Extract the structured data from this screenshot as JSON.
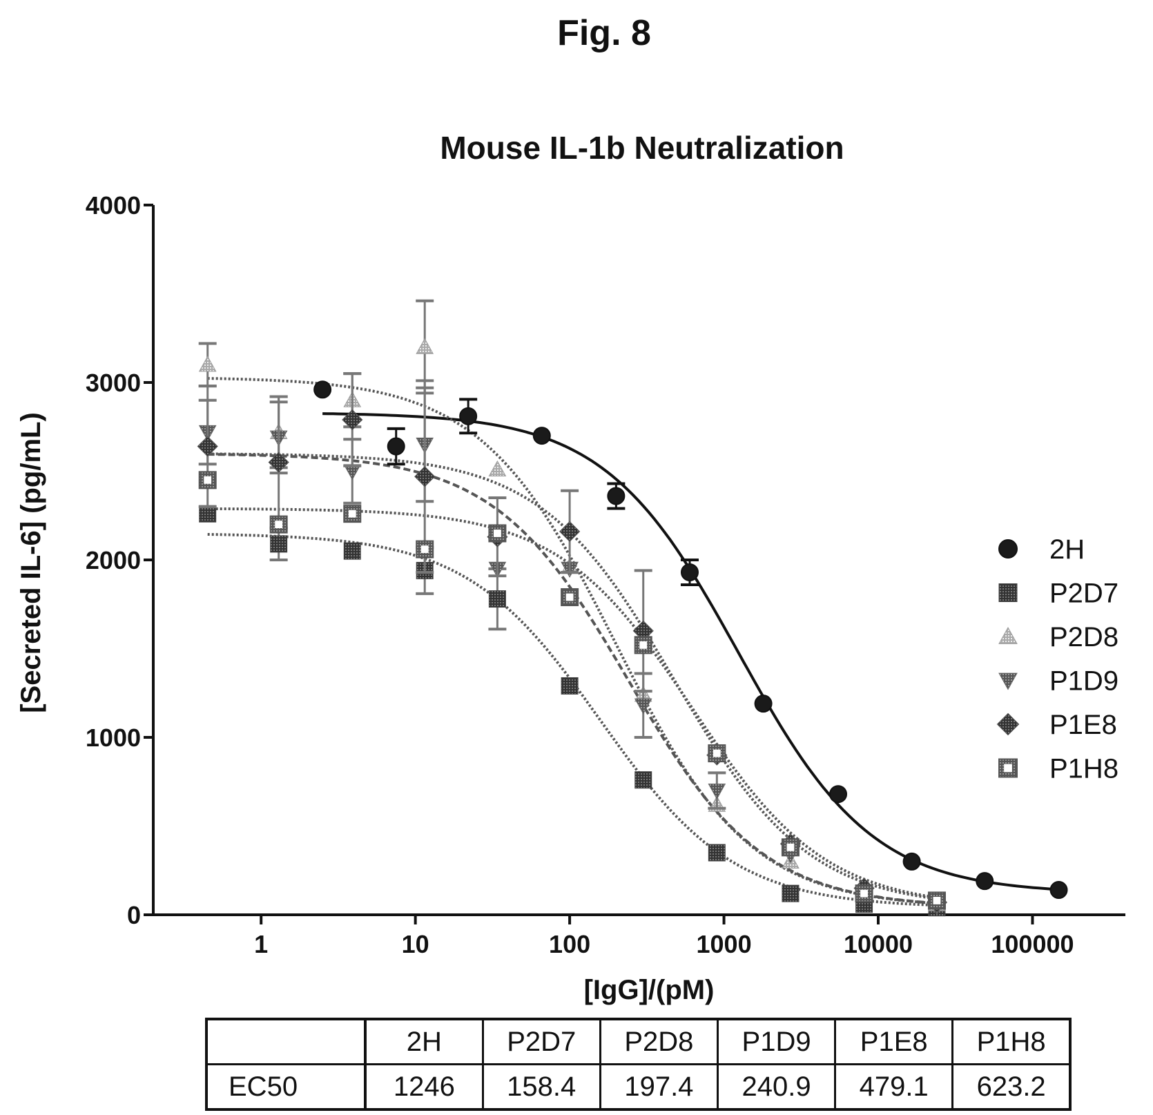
{
  "figure": {
    "title": "Fig. 8"
  },
  "chart_data": {
    "type": "scatter",
    "title": "Mouse IL-1b Neutralization",
    "xlabel": "[IgG]/(pM)",
    "ylabel": "[Secreted IL-6] (pg/mL)",
    "xscale": "log",
    "xlim": [
      0.2,
      400000
    ],
    "ylim": [
      0,
      4000
    ],
    "xticks": [
      1,
      10,
      100,
      1000,
      10000,
      100000
    ],
    "xtick_labels": [
      "1",
      "10",
      "100",
      "1000",
      "10000",
      "100000"
    ],
    "yticks": [
      0,
      1000,
      2000,
      3000,
      4000
    ],
    "ytick_labels": [
      "0",
      "1000",
      "2000",
      "3000",
      "4000"
    ],
    "grid": false,
    "legend_position": "right",
    "series": [
      {
        "name": "2H",
        "marker": "circle",
        "fill": "#1a1a1a",
        "line": "solid",
        "curve": {
          "top": 2830,
          "bottom": 120,
          "ec50": 1246,
          "hill": 1.0,
          "xmin": 2.5,
          "xmax": 150000
        },
        "points": [
          {
            "x": 2.5,
            "y": 2960,
            "err": 0
          },
          {
            "x": 7.5,
            "y": 2640,
            "err": 100
          },
          {
            "x": 22,
            "y": 2810,
            "err": 95
          },
          {
            "x": 66,
            "y": 2700,
            "err": 0
          },
          {
            "x": 200,
            "y": 2360,
            "err": 70
          },
          {
            "x": 600,
            "y": 1930,
            "err": 70
          },
          {
            "x": 1800,
            "y": 1190,
            "err": 0
          },
          {
            "x": 5500,
            "y": 680,
            "err": 0
          },
          {
            "x": 16500,
            "y": 300,
            "err": 0
          },
          {
            "x": 49000,
            "y": 190,
            "err": 0
          },
          {
            "x": 148000,
            "y": 140,
            "err": 0
          }
        ]
      },
      {
        "name": "P2D7",
        "marker": "square",
        "fill": "#555555",
        "line": "dotted",
        "curve": {
          "top": 2150,
          "bottom": 40,
          "ec50": 158.4,
          "hill": 1.0,
          "xmin": 0.45,
          "xmax": 25000
        },
        "points": [
          {
            "x": 0.45,
            "y": 2260,
            "err": 0
          },
          {
            "x": 1.3,
            "y": 2090,
            "err": 90
          },
          {
            "x": 3.9,
            "y": 2050,
            "err": 0
          },
          {
            "x": 11.5,
            "y": 1940,
            "err": 130
          },
          {
            "x": 34,
            "y": 1780,
            "err": 170
          },
          {
            "x": 100,
            "y": 1290,
            "err": 0
          },
          {
            "x": 300,
            "y": 760,
            "err": 0
          },
          {
            "x": 900,
            "y": 350,
            "err": 0
          },
          {
            "x": 2700,
            "y": 120,
            "err": 0
          },
          {
            "x": 8100,
            "y": 60,
            "err": 0
          },
          {
            "x": 24000,
            "y": 40,
            "err": 0
          }
        ]
      },
      {
        "name": "P2D8",
        "marker": "triangle-up",
        "fill": "#bdbdbd",
        "line": "dotted",
        "curve": {
          "top": 3030,
          "bottom": 40,
          "ec50": 197.4,
          "hill": 1.0,
          "xmin": 0.45,
          "xmax": 25000
        },
        "points": [
          {
            "x": 0.45,
            "y": 3100,
            "err": 120
          },
          {
            "x": 1.3,
            "y": 2720,
            "err": 200
          },
          {
            "x": 3.9,
            "y": 2900,
            "err": 150
          },
          {
            "x": 11.5,
            "y": 3200,
            "err": 260
          },
          {
            "x": 34,
            "y": 2510,
            "err": 0
          },
          {
            "x": 100,
            "y": 1960,
            "err": 0
          },
          {
            "x": 300,
            "y": 1240,
            "err": 0
          },
          {
            "x": 900,
            "y": 620,
            "err": 0
          },
          {
            "x": 2700,
            "y": 300,
            "err": 0
          },
          {
            "x": 8100,
            "y": 140,
            "err": 0
          },
          {
            "x": 24000,
            "y": 60,
            "err": 0
          }
        ]
      },
      {
        "name": "P1D9",
        "marker": "triangle-down",
        "fill": "#8a8a8a",
        "line": "dashed",
        "curve": {
          "top": 2600,
          "bottom": 40,
          "ec50": 240.9,
          "hill": 1.0,
          "xmin": 0.45,
          "xmax": 25000
        },
        "points": [
          {
            "x": 0.45,
            "y": 2720,
            "err": 180
          },
          {
            "x": 1.3,
            "y": 2690,
            "err": 200
          },
          {
            "x": 3.9,
            "y": 2500,
            "err": 180
          },
          {
            "x": 11.5,
            "y": 2650,
            "err": 320
          },
          {
            "x": 34,
            "y": 1950,
            "err": 0
          },
          {
            "x": 100,
            "y": 1950,
            "err": 0
          },
          {
            "x": 300,
            "y": 1180,
            "err": 180
          },
          {
            "x": 900,
            "y": 700,
            "err": 100
          },
          {
            "x": 2700,
            "y": 340,
            "err": 0
          },
          {
            "x": 8100,
            "y": 130,
            "err": 0
          },
          {
            "x": 24000,
            "y": 50,
            "err": 0
          }
        ]
      },
      {
        "name": "P1E8",
        "marker": "diamond",
        "fill": "#6f6f6f",
        "line": "dotted",
        "curve": {
          "top": 2600,
          "bottom": 40,
          "ec50": 479.1,
          "hill": 1.0,
          "xmin": 0.45,
          "xmax": 25000
        },
        "points": [
          {
            "x": 0.45,
            "y": 2640,
            "err": 340
          },
          {
            "x": 1.3,
            "y": 2550,
            "err": 370
          },
          {
            "x": 3.9,
            "y": 2790,
            "err": 260
          },
          {
            "x": 11.5,
            "y": 2470,
            "err": 540
          },
          {
            "x": 34,
            "y": 2130,
            "err": 220
          },
          {
            "x": 100,
            "y": 2160,
            "err": 230
          },
          {
            "x": 300,
            "y": 1600,
            "err": 340
          },
          {
            "x": 900,
            "y": 900,
            "err": 0
          },
          {
            "x": 2700,
            "y": 400,
            "err": 0
          },
          {
            "x": 8100,
            "y": 150,
            "err": 0
          },
          {
            "x": 24000,
            "y": 70,
            "err": 0
          }
        ]
      },
      {
        "name": "P1H8",
        "marker": "square-open",
        "fill": "#9a9a9a",
        "line": "dotted",
        "curve": {
          "top": 2290,
          "bottom": 40,
          "ec50": 623.2,
          "hill": 1.0,
          "xmin": 0.45,
          "xmax": 25000
        },
        "points": [
          {
            "x": 0.45,
            "y": 2450,
            "err": 0
          },
          {
            "x": 1.3,
            "y": 2200,
            "err": 0
          },
          {
            "x": 3.9,
            "y": 2260,
            "err": 0
          },
          {
            "x": 11.5,
            "y": 2060,
            "err": 0
          },
          {
            "x": 34,
            "y": 2150,
            "err": 0
          },
          {
            "x": 100,
            "y": 1790,
            "err": 0
          },
          {
            "x": 300,
            "y": 1520,
            "err": 0
          },
          {
            "x": 900,
            "y": 910,
            "err": 0
          },
          {
            "x": 2700,
            "y": 380,
            "err": 0
          },
          {
            "x": 8100,
            "y": 120,
            "err": 0
          },
          {
            "x": 24000,
            "y": 80,
            "err": 0
          }
        ]
      }
    ]
  },
  "ec50_table": {
    "headers": [
      "",
      "2H",
      "P2D7",
      "P2D8",
      "P1D9",
      "P1E8",
      "P1H8"
    ],
    "row_label": "EC50",
    "values": [
      "1246",
      "158.4",
      "197.4",
      "240.9",
      "479.1",
      "623.2"
    ]
  }
}
